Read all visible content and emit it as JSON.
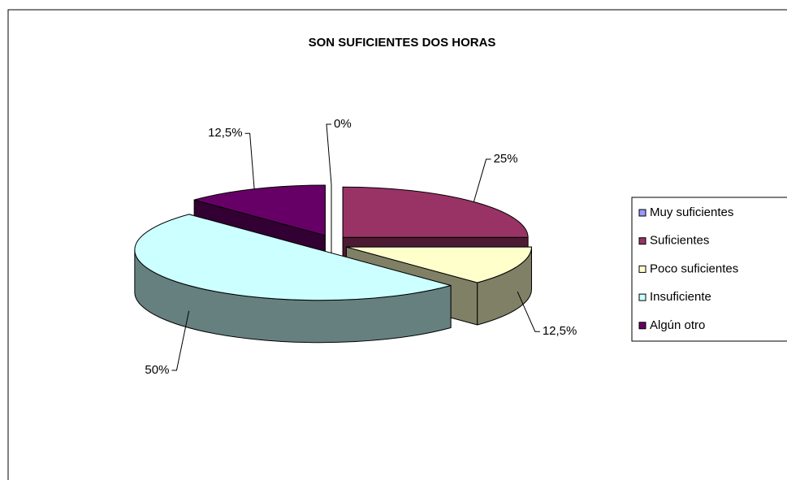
{
  "chart_data": {
    "type": "pie",
    "title": "SON SUFICIENTES DOS HORAS",
    "categories": [
      "Muy suficientes",
      "Suficientes",
      "Poco suficientes",
      "Insuficiente",
      "Algún otro"
    ],
    "values": [
      0,
      25,
      12.5,
      50,
      12.5
    ],
    "value_labels": [
      "0%",
      "25%",
      "12,5%",
      "50%",
      "12,5%"
    ],
    "colors": [
      "#9999ff",
      "#993366",
      "#ffffcc",
      "#ccffff",
      "#660066"
    ],
    "legend": "right"
  }
}
